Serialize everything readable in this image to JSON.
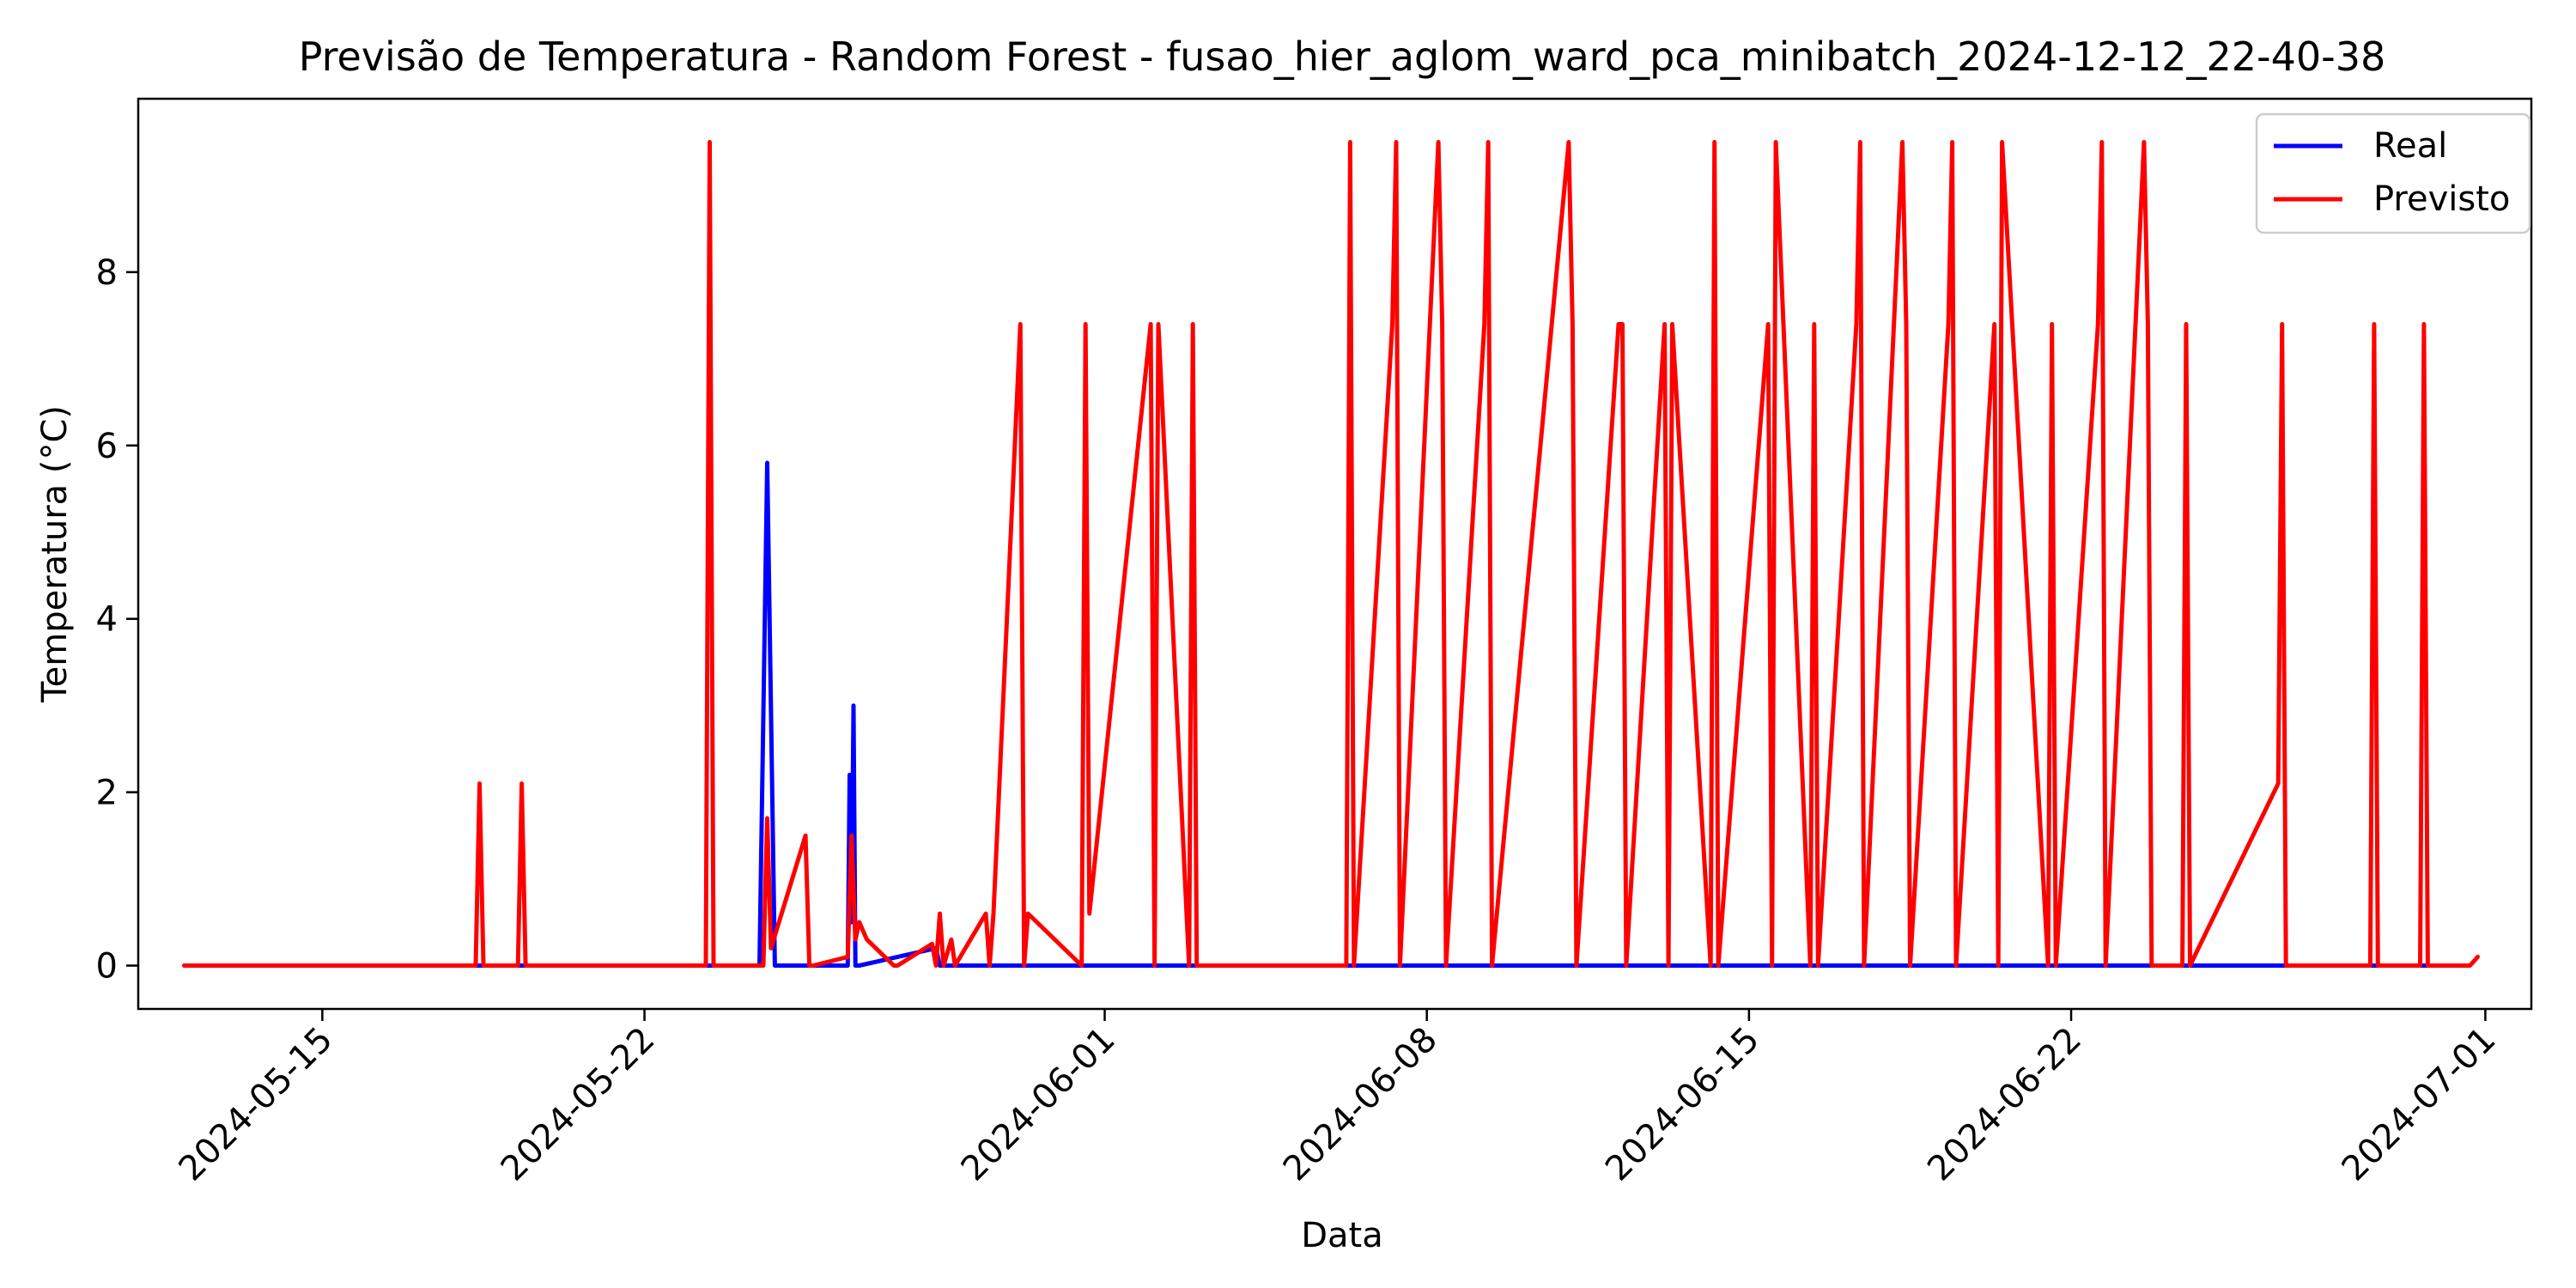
{
  "chart_data": {
    "type": "line",
    "title": "Previsão de Temperatura - Random Forest - fusao_hier_aglom_ward_pca_minibatch_2024-12-12_22-40-38",
    "xlabel": "Data",
    "ylabel": "Temperatura (°C)",
    "xlim": [
      "2024-05-11",
      "2024-07-02"
    ],
    "ylim": [
      -0.5,
      10.0
    ],
    "grid": false,
    "legend_position": "top-right",
    "x_tick_labels": [
      "2024-05-15",
      "2024-05-22",
      "2024-06-01",
      "2024-06-08",
      "2024-06-15",
      "2024-06-22",
      "2024-07-01"
    ],
    "y_tick_labels": [
      "0",
      "2",
      "4",
      "6",
      "8"
    ],
    "series": [
      {
        "name": "Real",
        "color": "#0000ff",
        "x": [
          "2024-05-12",
          "2024-05-24 12:00",
          "2024-05-24 16:00",
          "2024-05-24 20:00",
          "2024-05-26 10:00",
          "2024-05-26 11:00",
          "2024-05-26 12:00",
          "2024-05-26 13:00",
          "2024-05-26 14:00",
          "2024-05-26 16:00",
          "2024-05-28 08:00",
          "2024-05-28 10:00",
          "2024-06-30 12:00"
        ],
        "y": [
          0,
          0,
          5.8,
          0,
          0,
          2.2,
          0.5,
          3.0,
          0,
          0,
          0.2,
          0,
          0
        ]
      },
      {
        "name": "Previsto",
        "color": "#ff0000",
        "x": [
          "2024-05-12",
          "2024-05-18 08:00",
          "2024-05-18 10:00",
          "2024-05-18 12:00",
          "2024-05-19 06:00",
          "2024-05-19 08:00",
          "2024-05-19 10:00",
          "2024-05-23 08:00",
          "2024-05-23 10:00",
          "2024-05-23 12:00",
          "2024-05-24 14:00",
          "2024-05-24 16:00",
          "2024-05-24 18:00",
          "2024-05-25 12:00",
          "2024-05-25 14:00",
          "2024-05-25 16:00",
          "2024-05-26 10:00",
          "2024-05-26 12:00",
          "2024-05-26 14:00",
          "2024-05-26 16:00",
          "2024-05-26 20:00",
          "2024-05-27 10:00",
          "2024-05-27 12:00",
          "2024-05-28 06:00",
          "2024-05-28 08:00",
          "2024-05-28 10:00",
          "2024-05-28 12:00",
          "2024-05-28 16:00",
          "2024-05-28 18:00",
          "2024-05-29 10:00",
          "2024-05-29 12:00",
          "2024-05-29 14:00",
          "2024-05-30 04:00",
          "2024-05-30 06:00",
          "2024-05-30 08:00",
          "2024-05-31 12:00",
          "2024-05-31 14:00",
          "2024-05-31 16:00",
          "2024-06-02 00:00",
          "2024-06-02 02:00",
          "2024-06-02 04:00",
          "2024-06-02 20:00",
          "2024-06-02 22:00",
          "2024-06-03 00:00",
          "2024-06-06 06:00",
          "2024-06-06 08:00",
          "2024-06-06 10:00",
          "2024-06-07 06:00",
          "2024-06-07 08:00",
          "2024-06-07 10:00",
          "2024-06-08 06:00",
          "2024-06-08 08:00",
          "2024-06-08 10:00",
          "2024-06-09 06:00",
          "2024-06-09 08:00",
          "2024-06-09 10:00",
          "2024-06-11 02:00",
          "2024-06-11 04:00",
          "2024-06-11 06:00",
          "2024-06-12 04:00",
          "2024-06-12 06:00",
          "2024-06-12 08:00",
          "2024-06-13 04:00",
          "2024-06-13 06:00",
          "2024-06-13 08:00",
          "2024-06-14 04:00",
          "2024-06-14 06:00",
          "2024-06-14 08:00",
          "2024-06-15 10:00",
          "2024-06-15 12:00",
          "2024-06-15 14:00",
          "2024-06-16 08:00",
          "2024-06-16 10:00",
          "2024-06-16 12:00",
          "2024-06-17 08:00",
          "2024-06-17 10:00",
          "2024-06-17 12:00",
          "2024-06-18 08:00",
          "2024-06-18 10:00",
          "2024-06-18 12:00",
          "2024-06-19 08:00",
          "2024-06-19 10:00",
          "2024-06-19 12:00",
          "2024-06-20 08:00",
          "2024-06-20 10:00",
          "2024-06-20 12:00",
          "2024-06-21 12:00",
          "2024-06-21 14:00",
          "2024-06-21 16:00",
          "2024-06-22 14:00",
          "2024-06-22 16:00",
          "2024-06-22 18:00",
          "2024-06-23 14:00",
          "2024-06-23 16:00",
          "2024-06-23 18:00",
          "2024-06-24 10:00",
          "2024-06-24 12:00",
          "2024-06-24 14:00",
          "2024-06-26 12:00",
          "2024-06-26 14:00",
          "2024-06-26 16:00",
          "2024-06-28 12:00",
          "2024-06-28 14:00",
          "2024-06-28 16:00",
          "2024-06-29 14:00",
          "2024-06-29 16:00",
          "2024-06-29 18:00",
          "2024-06-30 16:00",
          "2024-06-30 18:00",
          "2024-06-30 20:00"
        ],
        "y": [
          0,
          0,
          2.1,
          0,
          0,
          2.1,
          0,
          0,
          9.5,
          0,
          0,
          1.7,
          0.2,
          1.5,
          0,
          0,
          0.1,
          1.5,
          0.3,
          0.5,
          0.3,
          0,
          0,
          0.25,
          0,
          0.6,
          0,
          0.3,
          0,
          0.6,
          0,
          0.6,
          7.4,
          0,
          0.6,
          0,
          7.4,
          0.6,
          7.4,
          0,
          7.4,
          0,
          7.4,
          0,
          0,
          9.5,
          0,
          7.4,
          9.5,
          0,
          9.5,
          7.4,
          0,
          7.4,
          9.5,
          0,
          9.5,
          7.4,
          0,
          7.4,
          7.4,
          0,
          7.4,
          0,
          7.4,
          0,
          9.5,
          0,
          7.4,
          0,
          9.5,
          0,
          7.4,
          0,
          7.4,
          9.5,
          0,
          9.5,
          7.4,
          0,
          7.4,
          9.5,
          0,
          7.4,
          0,
          9.5,
          0,
          7.4,
          0,
          7.4,
          9.5,
          0,
          9.5,
          7.4,
          0,
          0,
          7.4,
          0,
          2.1,
          7.4,
          0,
          0,
          7.4,
          0,
          0,
          7.4,
          0,
          0,
          0.05,
          0.1
        ]
      }
    ]
  }
}
